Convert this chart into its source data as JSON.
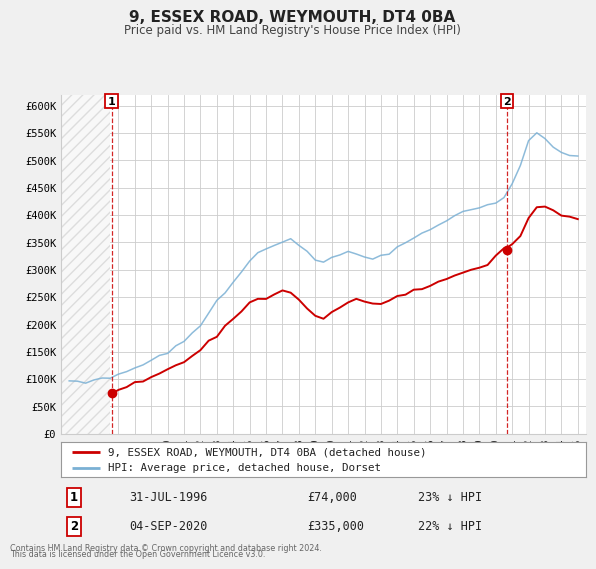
{
  "title": "9, ESSEX ROAD, WEYMOUTH, DT4 0BA",
  "subtitle": "Price paid vs. HM Land Registry's House Price Index (HPI)",
  "legend_label_red": "9, ESSEX ROAD, WEYMOUTH, DT4 0BA (detached house)",
  "legend_label_blue": "HPI: Average price, detached house, Dorset",
  "red_color": "#cc0000",
  "blue_color": "#7ab0d4",
  "marker1_date": 1996.58,
  "marker1_value": 74000,
  "marker2_date": 2020.67,
  "marker2_value": 335000,
  "annotation1_label": "1",
  "annotation1_date": "31-JUL-1996",
  "annotation1_price": "£74,000",
  "annotation1_pct": "23% ↓ HPI",
  "annotation2_label": "2",
  "annotation2_date": "04-SEP-2020",
  "annotation2_price": "£335,000",
  "annotation2_pct": "22% ↓ HPI",
  "footer1": "Contains HM Land Registry data © Crown copyright and database right 2024.",
  "footer2": "This data is licensed under the Open Government Licence v3.0.",
  "xlim": [
    1993.5,
    2025.5
  ],
  "ylim": [
    0,
    620000
  ],
  "yticks": [
    0,
    50000,
    100000,
    150000,
    200000,
    250000,
    300000,
    350000,
    400000,
    450000,
    500000,
    550000,
    600000
  ],
  "ytick_labels": [
    "£0",
    "£50K",
    "£100K",
    "£150K",
    "£200K",
    "£250K",
    "£300K",
    "£350K",
    "£400K",
    "£450K",
    "£500K",
    "£550K",
    "£600K"
  ],
  "xticks": [
    1994,
    1995,
    1996,
    1997,
    1998,
    1999,
    2000,
    2001,
    2002,
    2003,
    2004,
    2005,
    2006,
    2007,
    2008,
    2009,
    2010,
    2011,
    2012,
    2013,
    2014,
    2015,
    2016,
    2017,
    2018,
    2019,
    2020,
    2021,
    2022,
    2023,
    2024,
    2025
  ],
  "background_color": "#f0f0f0",
  "plot_bg_color": "#ffffff",
  "grid_color": "#cccccc",
  "hpi_years": [
    1994,
    1994.5,
    1995,
    1995.5,
    1996,
    1996.5,
    1997,
    1997.5,
    1998,
    1998.5,
    1999,
    1999.5,
    2000,
    2000.5,
    2001,
    2001.5,
    2002,
    2002.5,
    2003,
    2003.5,
    2004,
    2004.5,
    2005,
    2005.5,
    2006,
    2006.5,
    2007,
    2007.5,
    2008,
    2008.5,
    2009,
    2009.5,
    2010,
    2010.5,
    2011,
    2011.5,
    2012,
    2012.5,
    2013,
    2013.5,
    2014,
    2014.5,
    2015,
    2015.5,
    2016,
    2016.5,
    2017,
    2017.5,
    2018,
    2018.5,
    2019,
    2019.5,
    2020,
    2020.5,
    2021,
    2021.5,
    2022,
    2022.5,
    2023,
    2023.5,
    2024,
    2024.5,
    2025
  ],
  "hpi_values": [
    93000,
    94000,
    96000,
    98000,
    100000,
    103000,
    108000,
    113000,
    120000,
    126000,
    133000,
    140000,
    149000,
    158000,
    168000,
    183000,
    200000,
    220000,
    240000,
    260000,
    282000,
    300000,
    315000,
    325000,
    335000,
    340000,
    350000,
    353000,
    345000,
    332000,
    318000,
    315000,
    322000,
    328000,
    330000,
    328000,
    322000,
    320000,
    323000,
    330000,
    340000,
    350000,
    360000,
    368000,
    375000,
    382000,
    390000,
    398000,
    405000,
    410000,
    413000,
    418000,
    423000,
    430000,
    455000,
    490000,
    530000,
    548000,
    540000,
    525000,
    515000,
    510000,
    505000
  ],
  "red_years": [
    1996.58,
    1997,
    1997.5,
    1998,
    1998.5,
    1999,
    1999.5,
    2000,
    2000.5,
    2001,
    2001.5,
    2002,
    2002.5,
    2003,
    2003.5,
    2004,
    2004.5,
    2005,
    2005.5,
    2006,
    2006.5,
    2007,
    2007.5,
    2008,
    2008.5,
    2009,
    2009.5,
    2010,
    2010.5,
    2011,
    2011.5,
    2012,
    2012.5,
    2013,
    2013.5,
    2014,
    2014.5,
    2015,
    2015.5,
    2016,
    2016.5,
    2017,
    2017.5,
    2018,
    2018.5,
    2019,
    2019.5,
    2020,
    2020.5,
    2020.67,
    2021,
    2021.5,
    2022,
    2022.5,
    2023,
    2023.5,
    2024,
    2024.5,
    2025
  ],
  "red_values": [
    74000,
    80000,
    86000,
    92000,
    98000,
    104000,
    110000,
    117000,
    124000,
    131000,
    140000,
    152000,
    165000,
    180000,
    196000,
    212000,
    225000,
    236000,
    243000,
    250000,
    255000,
    262000,
    262000,
    245000,
    228000,
    215000,
    214000,
    220000,
    230000,
    240000,
    248000,
    240000,
    236000,
    238000,
    243000,
    250000,
    258000,
    263000,
    268000,
    272000,
    277000,
    283000,
    290000,
    295000,
    298000,
    302000,
    310000,
    325000,
    340000,
    335000,
    348000,
    362000,
    395000,
    415000,
    415000,
    408000,
    402000,
    398000,
    395000
  ]
}
